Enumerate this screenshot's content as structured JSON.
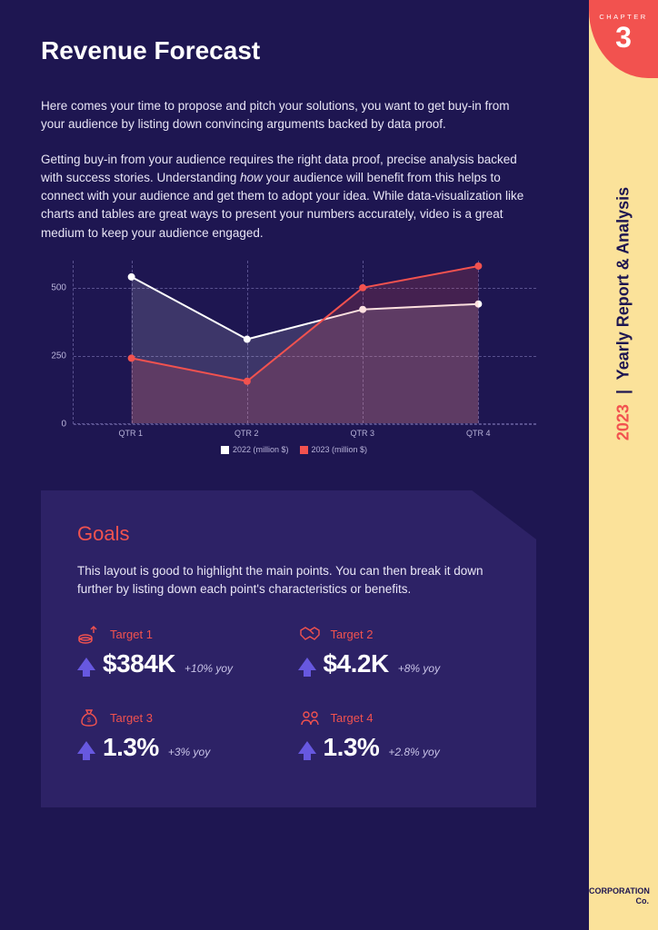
{
  "colors": {
    "page_bg": "#1e1651",
    "panel_bg": "#2d2266",
    "sidebar_bg": "#fbe29a",
    "accent_red": "#f2524f",
    "accent_purple": "#6758e0",
    "grid": "#5a5290",
    "text_light": "#e8e5f5",
    "text_muted": "#b8b3d9"
  },
  "title": "Revenue Forecast",
  "intro": {
    "p1": "Here comes your time to propose and pitch your solutions, you want to get buy-in from your audience by listing down convincing arguments backed by data proof.",
    "p2a": "Getting buy-in from your audience requires the right data proof, precise analysis backed with success stories. Understanding ",
    "p2_em": "how",
    "p2b": " your audience will benefit from this helps to connect with your audience and get them to adopt your idea. While data-visualization like charts and tables are great ways to present your numbers accurately, video is a great medium to keep your audience engaged."
  },
  "chart": {
    "type": "area-line",
    "categories": [
      "QTR 1",
      "QTR 2",
      "QTR 3",
      "QTR 4"
    ],
    "yticks": [
      0,
      250,
      500
    ],
    "ylim": [
      0,
      600
    ],
    "grid_color": "#5a5290",
    "background_color": "#1e1651",
    "label_fontsize": 10,
    "series": [
      {
        "name": "2022 (million $)",
        "color": "#ffffff",
        "line_width": 2,
        "marker": "circle",
        "marker_size": 5,
        "fill": "#ffffff",
        "fill_opacity": 0.14,
        "values": [
          540,
          310,
          420,
          440
        ]
      },
      {
        "name": "2023 (million $)",
        "color": "#f2524f",
        "line_width": 2,
        "marker": "circle",
        "marker_size": 5,
        "fill": "#f2524f",
        "fill_opacity": 0.18,
        "values": [
          240,
          155,
          500,
          580
        ]
      }
    ]
  },
  "goals": {
    "title": "Goals",
    "intro": "This layout is good to highlight the main points. You can then break it down further by listing down each point's characteristics or benefits.",
    "targets": [
      {
        "label": "Target 1",
        "value": "$384K",
        "yoy": "+10% yoy",
        "icon": "coins-icon"
      },
      {
        "label": "Target 2",
        "value": "$4.2K",
        "yoy": "+8% yoy",
        "icon": "handshake-icon"
      },
      {
        "label": "Target 3",
        "value": "1.3%",
        "yoy": "+3% yoy",
        "icon": "moneybag-icon"
      },
      {
        "label": "Target 4",
        "value": "1.3%",
        "yoy": "+2.8% yoy",
        "icon": "people-icon"
      }
    ]
  },
  "sidebar": {
    "chapter_label": "CHAPTER",
    "chapter_number": "3",
    "year": "2023",
    "side_title": "Yearly Report & Analysis",
    "corporation_line1": "CORPORATION",
    "corporation_line2": "Co."
  }
}
